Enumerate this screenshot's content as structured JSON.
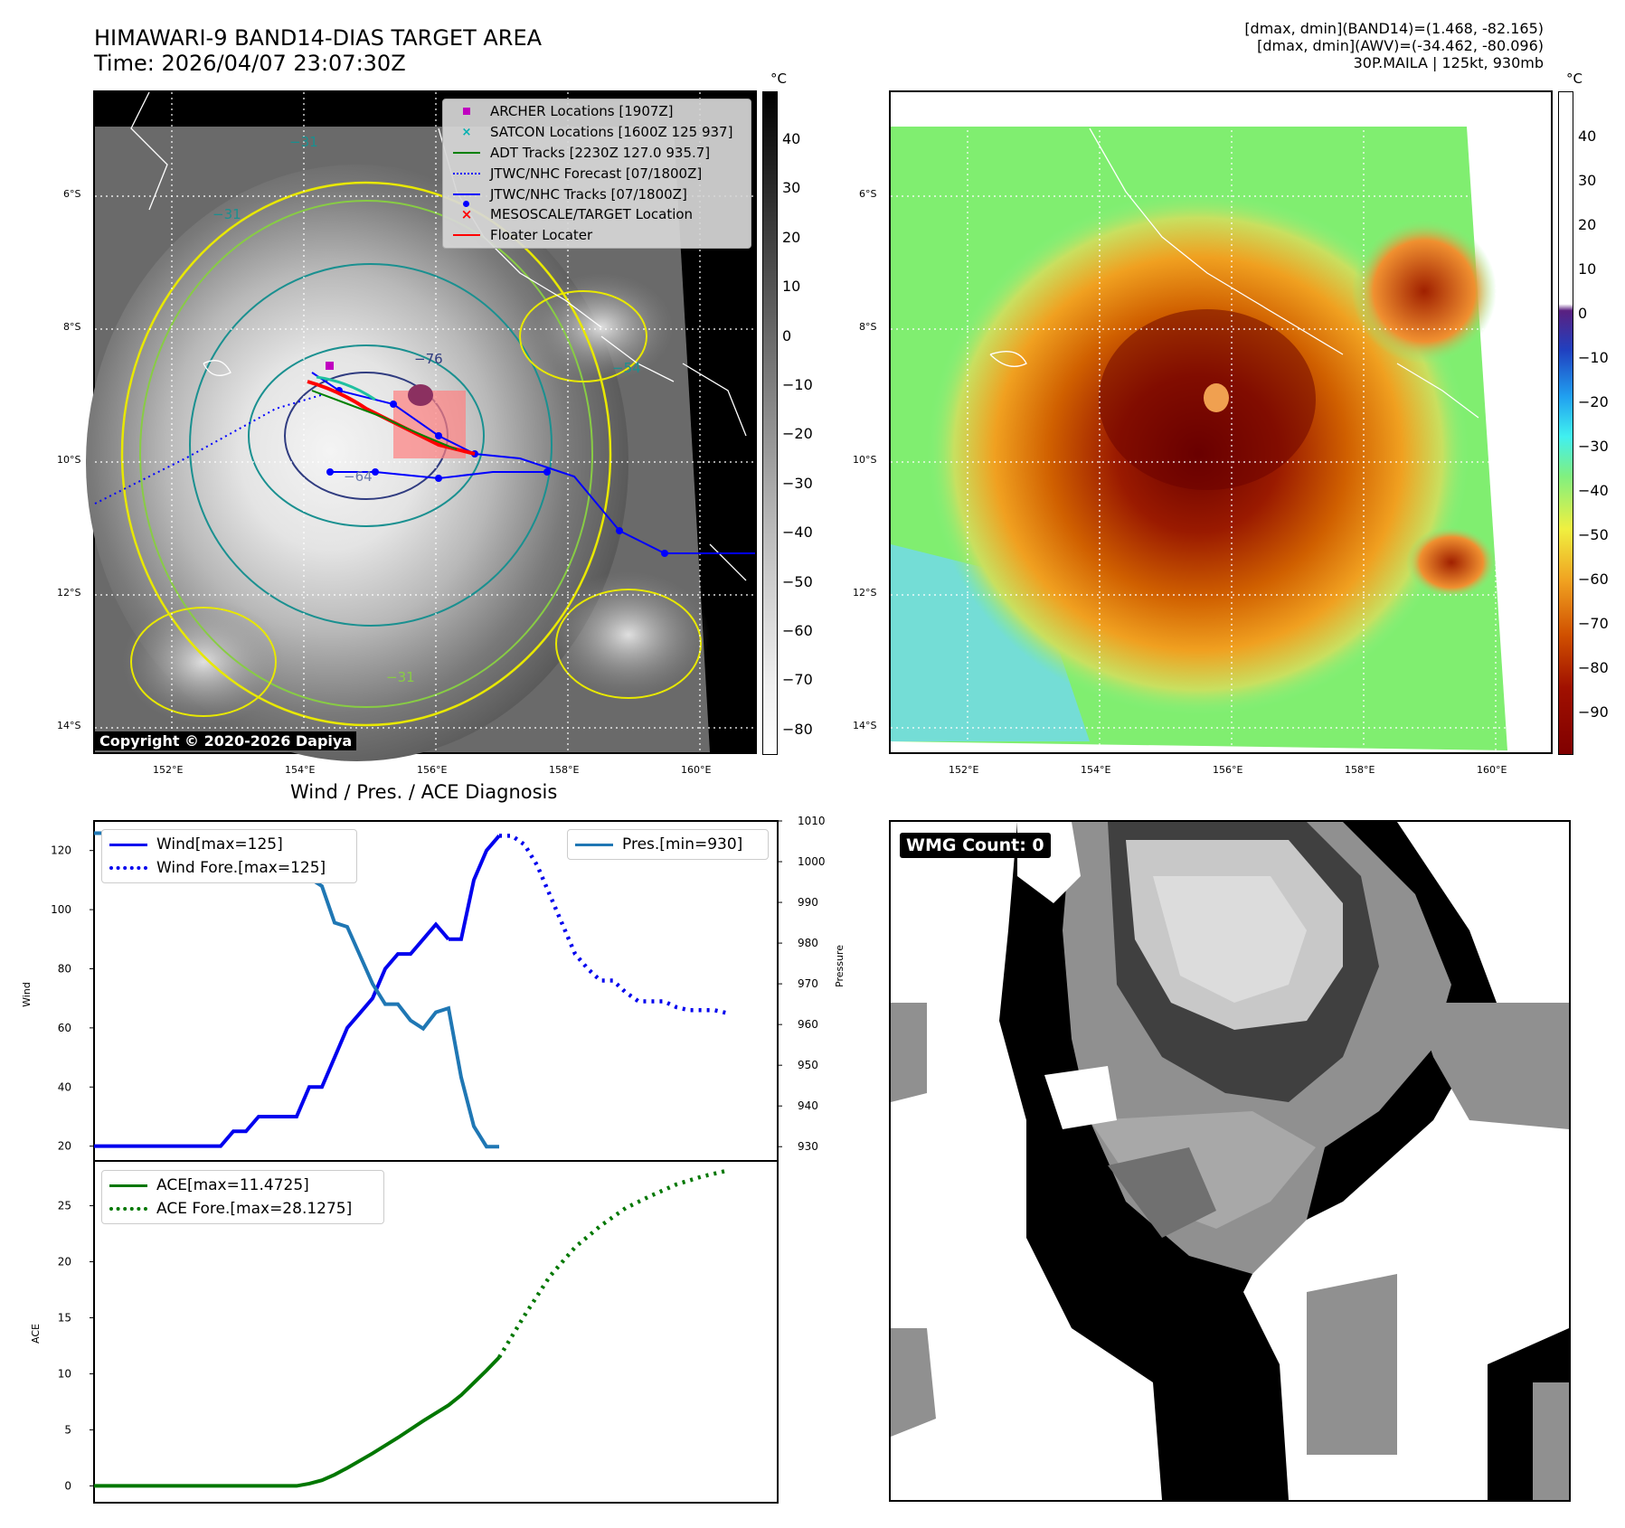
{
  "header": {
    "title_line1": "HIMAWARI-9 BAND14-DIAS TARGET AREA",
    "title_line2": "Time: 2026/04/07 23:07:30Z",
    "stats_line1": "[dmax, dmin](BAND14)=(1.468, -82.165)",
    "stats_line2": "[dmax, dmin](AWV)=(-34.462, -80.096)",
    "stats_line3": "30P.MAILA | 125kt, 930mb"
  },
  "map_axes": {
    "lat_ticks": [
      "6°S",
      "8°S",
      "10°S",
      "12°S",
      "14°S"
    ],
    "lon_ticks": [
      "152°E",
      "154°E",
      "156°E",
      "158°E",
      "160°E"
    ]
  },
  "ir_panel": {
    "colorbar_unit": "°C",
    "colorbar_ticks": [
      "40",
      "30",
      "20",
      "10",
      "0",
      "−10",
      "−20",
      "−30",
      "−40",
      "−50",
      "−60",
      "−70",
      "−80"
    ],
    "contour_labels": [
      "−31",
      "−31",
      "−54",
      "−76",
      "−64",
      "−31"
    ],
    "copyright": "Copyright © 2020-2026 Dapiya",
    "legend": [
      {
        "label": "ARCHER Locations [1907Z]",
        "symbol": "square",
        "color": "#c000c0"
      },
      {
        "label": "SATCON Locations [1600Z 125 937]",
        "symbol": "x",
        "color": "#00b0b0"
      },
      {
        "label": "ADT Tracks [2230Z 127.0 935.7]",
        "symbol": "line",
        "color": "#008000"
      },
      {
        "label": "JTWC/NHC Forecast [07/1800Z]",
        "symbol": "dotted",
        "color": "#0000ff"
      },
      {
        "label": "JTWC/NHC Tracks [07/1800Z]",
        "symbol": "line-dot",
        "color": "#0000ff"
      },
      {
        "label": "MESOSCALE/TARGET Location",
        "symbol": "x",
        "color": "#ff0000"
      },
      {
        "label": "Floater Locater",
        "symbol": "line",
        "color": "#ff0000"
      }
    ]
  },
  "awv_panel": {
    "colorbar_unit": "°C",
    "colorbar_ticks": [
      "40",
      "30",
      "20",
      "10",
      "0",
      "−10",
      "−20",
      "−30",
      "−40",
      "−50",
      "−60",
      "−70",
      "−80",
      "−90"
    ]
  },
  "diagnosis": {
    "title": "Wind / Pres. / ACE Diagnosis",
    "wind_ylabel": "Wind",
    "pres_ylabel": "Pressure",
    "ace_ylabel": "ACE",
    "legend_wind": "Wind[max=125]",
    "legend_wind_fore": "Wind Fore.[max=125]",
    "legend_pres": "Pres.[min=930]",
    "legend_ace": "ACE[max=11.4725]",
    "legend_ace_fore": "ACE Fore.[max=28.1275]"
  },
  "wmg_panel": {
    "label": "WMG Count: 0"
  },
  "chart_data": [
    {
      "type": "line",
      "name": "wind_pressure",
      "x_index": [
        0,
        1,
        2,
        3,
        4,
        5,
        6,
        7,
        8,
        9,
        10,
        11,
        12,
        13,
        14,
        15,
        16,
        17,
        18,
        19,
        20,
        21,
        22,
        23,
        24,
        25,
        26,
        27,
        28,
        29,
        30,
        31,
        32,
        33,
        34,
        35,
        36,
        37,
        38,
        39,
        40,
        41,
        42,
        43,
        44,
        45,
        46,
        47,
        48,
        49,
        50,
        51,
        52,
        53,
        54
      ],
      "ylim_wind": [
        15,
        130
      ],
      "ylim_pres": [
        926.5,
        1010
      ],
      "yticks_wind": [
        20,
        40,
        60,
        80,
        100,
        120
      ],
      "yticks_pres": [
        930,
        940,
        950,
        960,
        970,
        980,
        990,
        1000,
        1010
      ],
      "series": [
        {
          "name": "Wind[max=125]",
          "axis": "left",
          "style": "solid",
          "color": "#0000ee",
          "x": [
            0,
            2,
            4,
            6,
            8,
            9,
            10,
            11,
            12,
            13,
            14,
            15,
            16,
            17,
            18,
            19,
            20,
            21,
            22,
            23,
            24,
            25,
            26,
            27,
            28
          ],
          "values": [
            20,
            20,
            20,
            20,
            20,
            20,
            20,
            25,
            25,
            30,
            30,
            30,
            30,
            40,
            40,
            50,
            60,
            65,
            70,
            80,
            85,
            85,
            90,
            95,
            90
          ]
        },
        {
          "name": "Wind (cont.)",
          "axis": "left",
          "style": "solid",
          "color": "#0000ee",
          "x": [
            28,
            29,
            30,
            31,
            32
          ],
          "values": [
            90,
            90,
            110,
            120,
            125
          ]
        },
        {
          "name": "Wind Fore.[max=125]",
          "axis": "left",
          "style": "dotted",
          "color": "#0000ee",
          "x": [
            32,
            33,
            34,
            35,
            36,
            37,
            38,
            39,
            40,
            41,
            42,
            43,
            44,
            45,
            46,
            47,
            48,
            49,
            50
          ],
          "values": [
            125,
            125,
            122,
            115,
            105,
            95,
            85,
            80,
            76,
            76,
            72,
            69,
            69,
            69,
            67,
            66,
            66,
            66,
            65
          ]
        },
        {
          "name": "Pres.[min=930]",
          "axis": "right",
          "style": "solid",
          "color": "#1f77b4",
          "x": [
            0,
            2,
            4,
            6,
            8,
            10,
            12,
            14,
            15,
            16,
            17,
            18,
            19,
            20,
            21,
            22,
            23,
            24,
            25,
            26,
            27,
            28,
            29,
            30,
            31,
            32
          ],
          "values": [
            1007,
            1007,
            1007,
            1005,
            1005,
            1004,
            1004,
            1003,
            1003,
            997,
            996,
            994,
            985,
            984,
            977,
            970,
            965,
            965,
            961,
            959,
            963,
            964,
            947,
            935,
            930,
            930
          ]
        }
      ]
    },
    {
      "type": "line",
      "name": "ace",
      "ylim": [
        -1.5,
        29
      ],
      "yticks": [
        0,
        5,
        10,
        15,
        20,
        25
      ],
      "series": [
        {
          "name": "ACE[max=11.4725]",
          "style": "solid",
          "color": "#007700",
          "x": [
            0,
            4,
            8,
            12,
            14,
            16,
            17,
            18,
            19,
            20,
            22,
            24,
            26,
            28,
            29,
            30,
            31,
            32
          ],
          "values": [
            0,
            0,
            0,
            0,
            0,
            0,
            0.2,
            0.5,
            1.0,
            1.6,
            2.9,
            4.3,
            5.8,
            7.2,
            8.1,
            9.2,
            10.3,
            11.47
          ]
        },
        {
          "name": "ACE Fore.[max=28.1275]",
          "style": "dotted",
          "color": "#007700",
          "x": [
            32,
            34,
            36,
            38,
            40,
            42,
            44,
            46,
            48,
            50
          ],
          "values": [
            11.47,
            15.2,
            18.7,
            21.3,
            23.2,
            24.8,
            25.9,
            26.9,
            27.6,
            28.13
          ]
        }
      ]
    }
  ]
}
